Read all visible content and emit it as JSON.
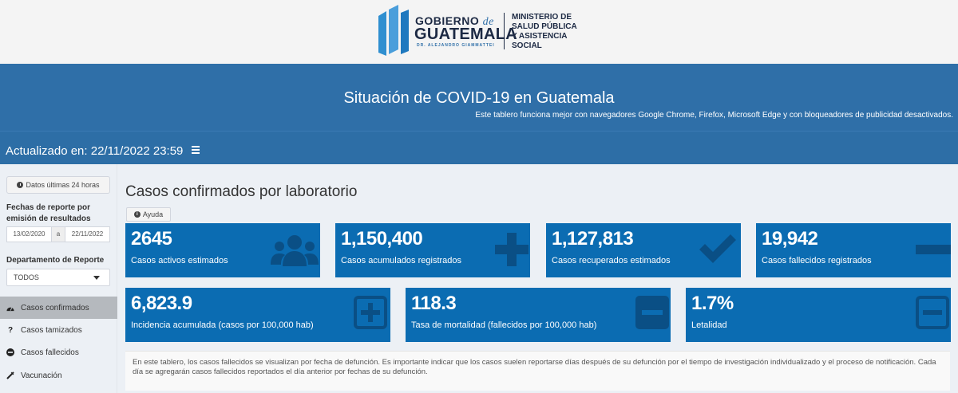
{
  "logo": {
    "gobierno": "GOBIERNO",
    "de": "de",
    "guatemala": "GUATEMALA",
    "dr": "DR. ALEJANDRO GIAMMATTEI",
    "ministerio": [
      "MINISTERIO DE",
      "SALUD PÚBLICA",
      "Y ASISTENCIA",
      "SOCIAL"
    ]
  },
  "header": {
    "title": "Situación de COVID-19 en Guatemala",
    "subtitle": "Este tablero funciona mejor con navegadores Google Chrome, Firefox, Microsoft Edge y con bloqueadores de publicidad desactivados."
  },
  "navbar": {
    "updated": "Actualizado en: 22/11/2022 23:59",
    "menu_icon": "hamburger-icon"
  },
  "sidebar": {
    "btn_24h": "Datos últimas 24 horas",
    "fechas_label": "Fechas de reporte por emisión de resultados",
    "date_from": "13/02/2020",
    "date_sep": "a",
    "date_to": "22/11/2022",
    "depto_label": "Departamento de Reporte",
    "depto_value": "TODOS",
    "menu": [
      {
        "label": "Casos confirmados",
        "icon": "dashboard-icon",
        "active": true
      },
      {
        "label": "Casos tamizados",
        "icon": "question-icon",
        "active": false
      },
      {
        "label": "Casos fallecidos",
        "icon": "minus-circle-icon",
        "active": false
      },
      {
        "label": "Vacunación",
        "icon": "syringe-icon",
        "active": false
      }
    ]
  },
  "main": {
    "title": "Casos confirmados por laboratorio",
    "ayuda": "Ayuda",
    "boxes_top": [
      {
        "value": "2645",
        "label": "Casos activos estimados",
        "icon": "users-icon"
      },
      {
        "value": "1,150,400",
        "label": "Casos acumulados registrados",
        "icon": "plus-icon"
      },
      {
        "value": "1,127,813",
        "label": "Casos recuperados estimados",
        "icon": "check-icon"
      },
      {
        "value": "19,942",
        "label": "Casos fallecidos registrados",
        "icon": "minus-icon"
      }
    ],
    "boxes_bottom": [
      {
        "value": "6,823.9",
        "label": "Incidencia acumulada (casos por 100,000 hab)",
        "icon": "plus-square-icon"
      },
      {
        "value": "118.3",
        "label": "Tasa de mortalidad (fallecidos por 100,000 hab)",
        "icon": "minus-square-icon"
      },
      {
        "value": "1.7%",
        "label": "Letalidad",
        "icon": "minus-square-outline-icon"
      }
    ],
    "note": "En este tablero, los casos fallecidos se visualizan por fecha de defunción. Es importante indicar que los casos suelen reportarse días después de su defunción por el tiempo de investigación individualizado y el proceso de notificación. Cada día se agregarán casos fallecidos reportados el día anterior por fechas de su defunción."
  },
  "colors": {
    "header_blue": "#2f6fa8",
    "box_blue": "#0b6cb2",
    "icon_dark": "#0a4f85"
  }
}
